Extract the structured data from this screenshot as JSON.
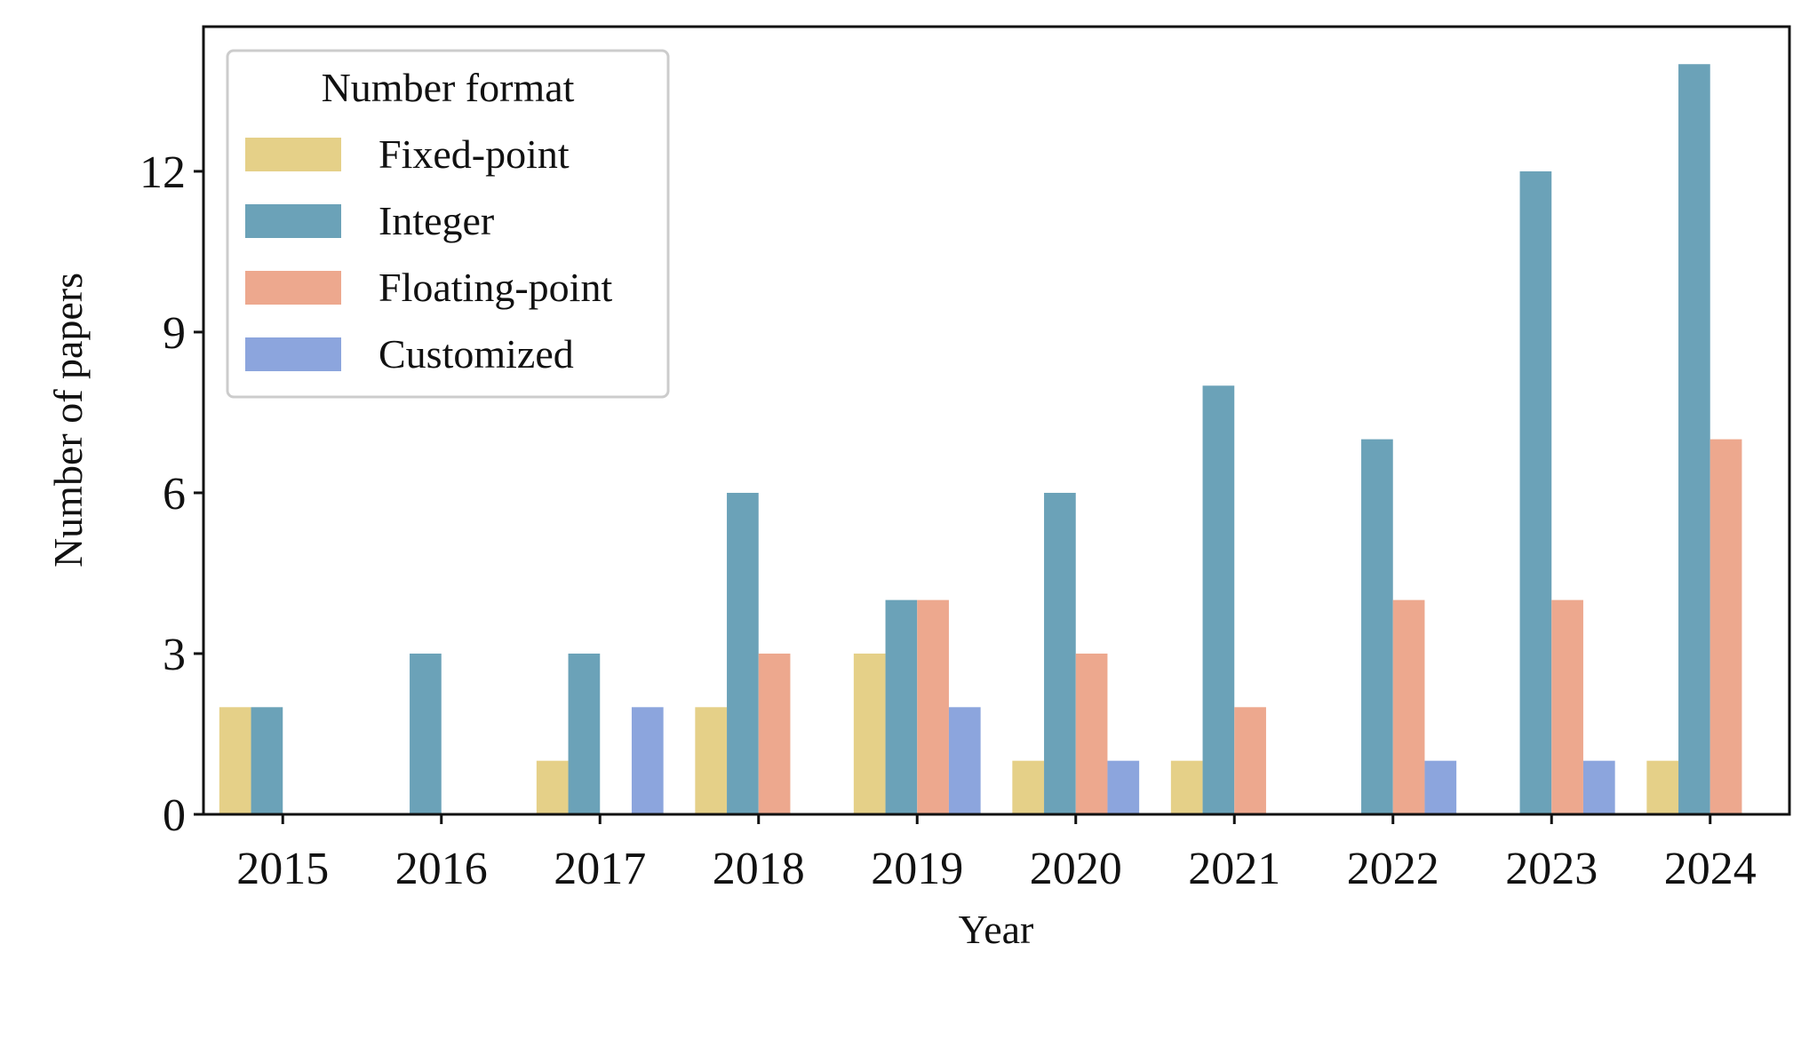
{
  "chart_data": {
    "type": "bar",
    "title": "",
    "xlabel": "Year",
    "ylabel": "Number of papers",
    "categories": [
      "2015",
      "2016",
      "2017",
      "2018",
      "2019",
      "2020",
      "2021",
      "2022",
      "2023",
      "2024"
    ],
    "yticks": [
      "0",
      "3",
      "6",
      "9",
      "12"
    ],
    "ylim": [
      0,
      14.7
    ],
    "grid": false,
    "legend": {
      "title": "Number format",
      "placement": "top-left"
    },
    "series": [
      {
        "name": "Fixed-point",
        "color": "#e5d088",
        "values": [
          2,
          0,
          1,
          2,
          3,
          1,
          1,
          0,
          0,
          1
        ]
      },
      {
        "name": "Integer",
        "color": "#6ba2b8",
        "values": [
          2,
          3,
          3,
          6,
          4,
          6,
          8,
          7,
          12,
          14
        ]
      },
      {
        "name": "Floating-point",
        "color": "#eda88e",
        "values": [
          0,
          0,
          0,
          3,
          4,
          3,
          2,
          4,
          4,
          7
        ]
      },
      {
        "name": "Customized",
        "color": "#8ca5dd",
        "values": [
          0,
          0,
          2,
          0,
          2,
          1,
          0,
          1,
          1,
          0
        ]
      }
    ]
  }
}
